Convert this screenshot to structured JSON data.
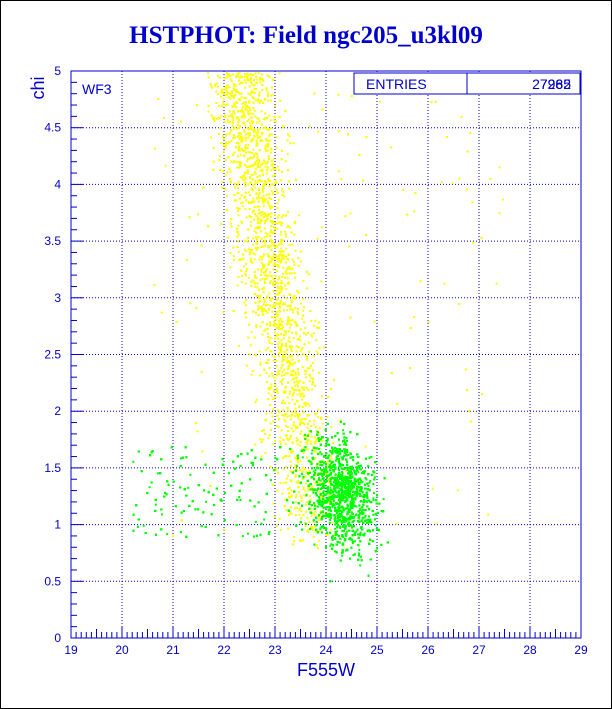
{
  "chart_data": {
    "type": "scatter",
    "title": "HSTPHOT: Field ngc205_u3kl09",
    "xlabel": "F555W",
    "ylabel": "chi",
    "xlim": [
      19,
      29
    ],
    "ylim": [
      0,
      5
    ],
    "x_ticks": [
      "19",
      "20",
      "21",
      "22",
      "23",
      "24",
      "25",
      "26",
      "27",
      "28",
      "29"
    ],
    "y_ticks": [
      "0",
      "0.5",
      "1",
      "1.5",
      "2",
      "2.5",
      "3",
      "3.5",
      "4",
      "4.5",
      "5"
    ],
    "grid": true,
    "panel_label": "WF3",
    "stats_box": {
      "label": "ENTRIES",
      "values": [
        "27265",
        "7982"
      ]
    },
    "series": [
      {
        "color": "#ffff00",
        "count_shown": 7982,
        "distribution": {
          "x_center": 23.0,
          "x_range": [
            20.5,
            27.5
          ],
          "y_range": [
            0.8,
            5.0
          ]
        }
      },
      {
        "color": "#00ff00",
        "count_shown": 27265,
        "distribution": {
          "x_center": 24.3,
          "x_range": [
            20.2,
            26.0
          ],
          "y_range": [
            0.4,
            2.6
          ]
        }
      }
    ],
    "colors": {
      "axis": "#0000cc",
      "text": "#0000cc",
      "title": "#0000cc"
    }
  }
}
